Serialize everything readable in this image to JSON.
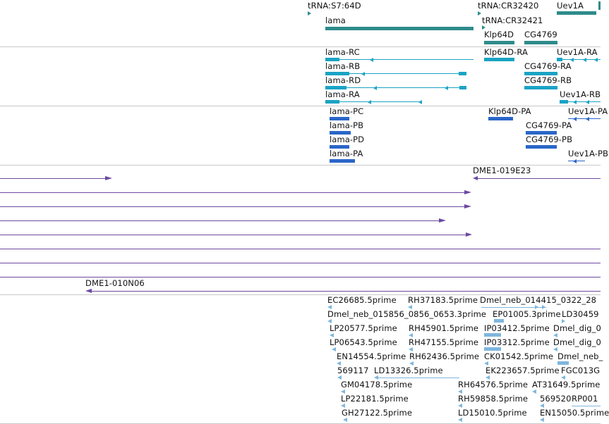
{
  "colors": {
    "gene": "#2e8b8b",
    "transcript": "#1aa3c4",
    "protein": "#2a66c8",
    "clone": "#6b4aa0",
    "est": "#7fb6dd",
    "divider": "#c8c8c8"
  },
  "tracks": [
    {
      "name": "genes",
      "label_list": [
        "tRNA:S7:64D",
        "tRNA:CR32420",
        "Uev1A",
        "lama",
        "tRNA:CR32421",
        "Klp64D",
        "CG4769"
      ]
    },
    {
      "name": "transcripts",
      "label_list": [
        "lama-RC",
        "lama-RB",
        "lama-RD",
        "lama-RA",
        "Klp64D-RA",
        "Uev1A-RA",
        "CG4769-RA",
        "CG4769-RB",
        "Uev1A-RB"
      ]
    },
    {
      "name": "proteins",
      "label_list": [
        "lama-PC",
        "lama-PB",
        "lama-PD",
        "lama-PA",
        "Klp64D-PA",
        "Uev1A-PA",
        "CG4769-PA",
        "CG4769-PB",
        "Uev1A-PB"
      ]
    },
    {
      "name": "clones",
      "label_list": [
        "DME1-019E23",
        "DME1-010N06"
      ]
    },
    {
      "name": "ests",
      "label_list": [
        "EC26685.5prime",
        "RH37183.5prime",
        "Dmel_neb_014415_0322_28",
        "Dmel_neb_015856_0856_0653.3prime",
        "EP01005.3prime",
        "LD30459",
        "LP20577.5prime",
        "RH45901.5prime",
        "IP03412.5prime",
        "Dmel_dig_0",
        "LP06543.5prime",
        "RH47155.5prime",
        "IP03312.5prime",
        "Dmel_dig_0",
        "EN14554.5prime",
        "RH62436.5prime",
        "CK01542.5prime",
        "Dmel_neb_",
        "569117",
        "LD13326.5prime",
        "EK223657.5prime",
        "FGC013G",
        "GM04178.5prime",
        "RH64576.5prime",
        "AT31649.5prime",
        "LP22181.5prime",
        "RH59858.5prime",
        "569520",
        "RP001",
        "GH27122.5prime",
        "LD15010.5prime",
        "EN15050.5prime"
      ]
    }
  ],
  "labels": {
    "g_trna_s7": "tRNA:S7:64D",
    "g_trna_cr32420": "tRNA:CR32420",
    "g_uev1a": "Uev1A",
    "g_lama": "lama",
    "g_trna_cr32421": "tRNA:CR32421",
    "g_klp64d": "Klp64D",
    "g_cg4769": "CG4769",
    "t_lama_rc": "lama-RC",
    "t_lama_rb": "lama-RB",
    "t_lama_rd": "lama-RD",
    "t_lama_ra": "lama-RA",
    "t_klp_ra": "Klp64D-RA",
    "t_uev_ra": "Uev1A-RA",
    "t_cg_ra": "CG4769-RA",
    "t_cg_rb": "CG4769-RB",
    "t_uev_rb": "Uev1A-RB",
    "p_lama_pc": "lama-PC",
    "p_lama_pb": "lama-PB",
    "p_lama_pd": "lama-PD",
    "p_lama_pa": "lama-PA",
    "p_klp_pa": "Klp64D-PA",
    "p_uev_pa": "Uev1A-PA",
    "p_cg_pa": "CG4769-PA",
    "p_cg_pb": "CG4769-PB",
    "p_uev_pb": "Uev1A-PB",
    "c_019e23": "DME1-019E23",
    "c_010n06": "DME1-010N06",
    "e1": "EC26685.5prime",
    "e2": "RH37183.5prime",
    "e3": "Dmel_neb_014415_0322_28",
    "e4": "Dmel_neb_015856_0856_0653.3prime",
    "e5": "EP01005.3prime",
    "e6": "LD30459",
    "e7": "LP20577.5prime",
    "e8": "RH45901.5prime",
    "e9": "IP03412.5prime",
    "e10": "Dmel_dig_0",
    "e11": "LP06543.5prime",
    "e12": "RH47155.5prime",
    "e13": "IP03312.5prime",
    "e14": "Dmel_dig_0",
    "e15": "EN14554.5prime",
    "e16": "RH62436.5prime",
    "e17": "CK01542.5prime",
    "e18": "Dmel_neb_",
    "e19": "569117",
    "e20": "LD13326.5prime",
    "e21": "EK223657.5prime",
    "e22": "FGC013G",
    "e23": "GM04178.5prime",
    "e24": "RH64576.5prime",
    "e25": "AT31649.5prime",
    "e26": "LP22181.5prime",
    "e27": "RH59858.5prime",
    "e28": "569520",
    "e29": "RP001",
    "e30": "GH27122.5prime",
    "e31": "LD15010.5prime",
    "e32": "EN15050.5prime"
  }
}
